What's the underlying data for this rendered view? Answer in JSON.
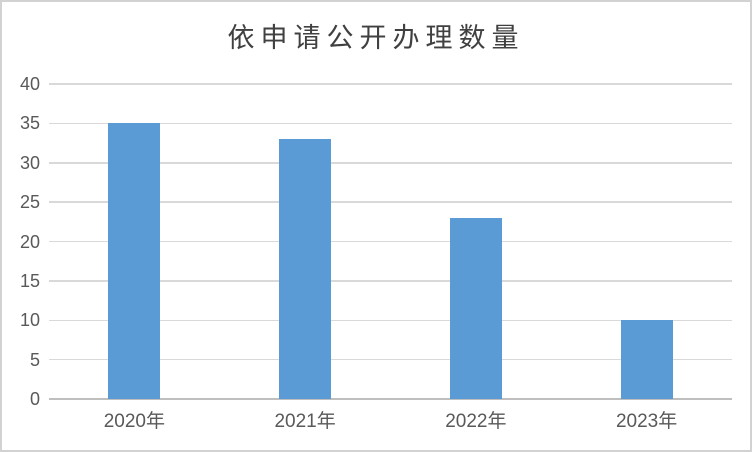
{
  "chart_data": {
    "type": "bar",
    "title": "依申请公开办理数量",
    "categories": [
      "2020年",
      "2021年",
      "2022年",
      "2023年"
    ],
    "values": [
      35,
      33,
      23,
      10
    ],
    "xlabel": "",
    "ylabel": "",
    "ylim": [
      0,
      40
    ],
    "yticks": [
      0,
      5,
      10,
      15,
      20,
      25,
      30,
      35,
      40
    ],
    "grid": true,
    "legend": "none",
    "colors": {
      "bar_fill": "#5B9BD5",
      "gridline": "#D9D9D9",
      "axis_line": "#BFBFBF",
      "tick_label": "#595959",
      "title": "#404040",
      "frame_border": "#D2D2D2",
      "background": "#FFFFFF"
    }
  }
}
